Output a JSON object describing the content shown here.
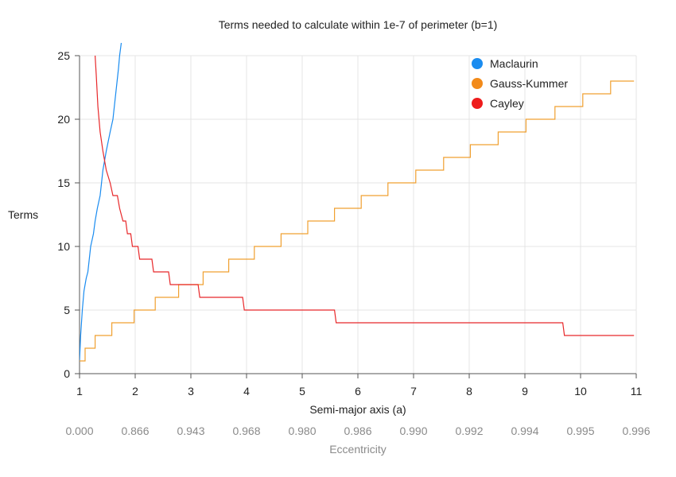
{
  "chart_data": {
    "type": "line",
    "title": "Terms needed to calculate within 1e-7 of perimeter (b=1)",
    "xlabel": "Semi-major axis (a)",
    "ylabel": "Terms",
    "x2label": "Eccentricity",
    "xlim": [
      1,
      11
    ],
    "ylim": [
      0,
      25
    ],
    "x_ticks": [
      "1",
      "2",
      "3",
      "4",
      "5",
      "6",
      "7",
      "8",
      "9",
      "10",
      "11"
    ],
    "y_ticks": [
      "0",
      "5",
      "10",
      "15",
      "20",
      "25"
    ],
    "x2_ticks": [
      "0.000",
      "0.866",
      "0.943",
      "0.968",
      "0.980",
      "0.986",
      "0.990",
      "0.992",
      "0.994",
      "0.995",
      "0.996"
    ],
    "grid": true,
    "legend_position": "top-right",
    "series": [
      {
        "name": "Maclaurin",
        "color": "#1a8cf0",
        "marker_color": "#1a8cf0",
        "points": [
          [
            1.0,
            1
          ],
          [
            1.02,
            3
          ],
          [
            1.05,
            5
          ],
          [
            1.08,
            6.5
          ],
          [
            1.12,
            7.5
          ],
          [
            1.15,
            8
          ],
          [
            1.2,
            10
          ],
          [
            1.25,
            11
          ],
          [
            1.28,
            12
          ],
          [
            1.32,
            13
          ],
          [
            1.37,
            14
          ],
          [
            1.42,
            16
          ],
          [
            1.48,
            17.5
          ],
          [
            1.55,
            19
          ],
          [
            1.6,
            20
          ],
          [
            1.65,
            22
          ],
          [
            1.7,
            24
          ],
          [
            1.72,
            25
          ],
          [
            1.75,
            26
          ]
        ]
      },
      {
        "name": "Gauss-Kummer",
        "color": "#f0a030",
        "marker_color": "#f28a1a",
        "steps": [
          [
            1.0,
            1
          ],
          [
            1.1,
            2
          ],
          [
            1.28,
            3
          ],
          [
            1.58,
            4
          ],
          [
            1.98,
            5
          ],
          [
            2.36,
            6
          ],
          [
            2.78,
            7
          ],
          [
            3.22,
            8
          ],
          [
            3.68,
            9
          ],
          [
            4.14,
            10
          ],
          [
            4.62,
            11
          ],
          [
            5.1,
            12
          ],
          [
            5.58,
            13
          ],
          [
            6.06,
            14
          ],
          [
            6.54,
            15
          ],
          [
            7.04,
            16
          ],
          [
            7.54,
            17
          ],
          [
            8.02,
            18
          ],
          [
            8.52,
            19
          ],
          [
            9.02,
            20
          ],
          [
            9.54,
            21
          ],
          [
            10.04,
            22
          ],
          [
            10.54,
            23
          ],
          [
            10.96,
            23
          ]
        ]
      },
      {
        "name": "Cayley",
        "color": "#e8282a",
        "marker_color": "#ee1c1c",
        "points": [
          [
            1.28,
            25
          ],
          [
            1.3,
            23.5
          ],
          [
            1.33,
            21
          ],
          [
            1.37,
            19
          ],
          [
            1.42,
            17.5
          ],
          [
            1.48,
            16
          ],
          [
            1.55,
            15
          ],
          [
            1.6,
            14
          ],
          [
            1.68,
            14
          ],
          [
            1.72,
            13
          ],
          [
            1.78,
            12
          ],
          [
            1.83,
            12
          ],
          [
            1.86,
            11
          ],
          [
            1.92,
            11
          ],
          [
            1.95,
            10
          ],
          [
            2.05,
            10
          ],
          [
            2.08,
            9
          ],
          [
            2.3,
            9
          ],
          [
            2.33,
            8
          ],
          [
            2.6,
            8
          ],
          [
            2.63,
            7
          ],
          [
            3.13,
            7
          ],
          [
            3.16,
            6
          ],
          [
            3.93,
            6
          ],
          [
            3.96,
            5
          ],
          [
            5.58,
            5
          ],
          [
            5.61,
            4
          ],
          [
            9.68,
            4
          ],
          [
            9.71,
            3
          ],
          [
            10.96,
            3
          ]
        ]
      }
    ]
  }
}
